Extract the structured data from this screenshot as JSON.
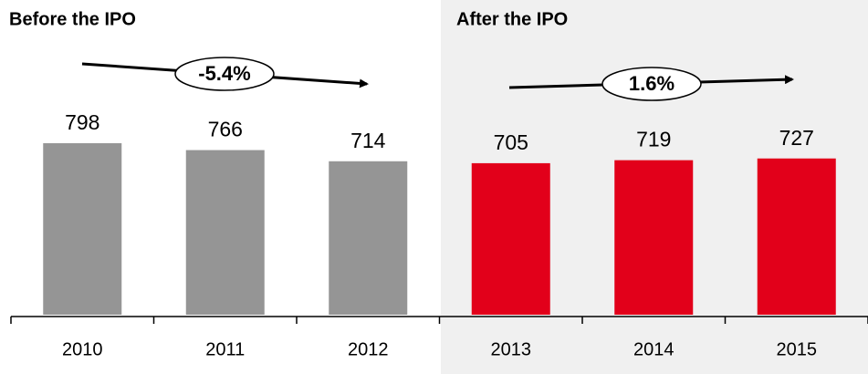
{
  "chart_data": {
    "type": "bar",
    "categories": [
      "2010",
      "2011",
      "2012",
      "2013",
      "2014",
      "2015"
    ],
    "values": [
      798,
      766,
      714,
      705,
      719,
      727
    ],
    "colors": [
      "#959595",
      "#959595",
      "#959595",
      "#e2001a",
      "#e2001a",
      "#e2001a"
    ],
    "groups": [
      {
        "label": "Before the IPO",
        "change": "-5.4%"
      },
      {
        "label": "After the IPO",
        "change": "1.6%"
      }
    ]
  }
}
